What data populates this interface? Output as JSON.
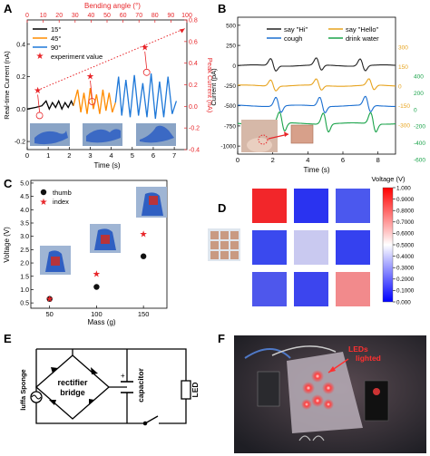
{
  "panel_labels": {
    "a": "A",
    "b": "B",
    "c": "C",
    "d": "D",
    "e": "E",
    "f": "F"
  },
  "chart_data": [
    {
      "panel": "A",
      "type": "line",
      "xlabel": "Time (s)",
      "x_ticks": [
        0,
        1,
        2,
        3,
        4,
        5,
        6,
        7
      ],
      "xlim": [
        0,
        7.6
      ],
      "ylabel_left": "Real-time Current (nA)",
      "ylim_left": [
        -0.25,
        0.55
      ],
      "y_ticks_left": [
        "-0.2",
        "0.0",
        "0.2",
        "0.4"
      ],
      "ylabel_right": "Peak Current (nA)",
      "ylim_right": [
        -0.4,
        0.8
      ],
      "y_ticks_right": [
        "-0.4",
        "-0.2",
        "0.0",
        "0.2",
        "0.4",
        "0.6",
        "0.8"
      ],
      "top_axis_label": "Bending angle (°)",
      "top_ticks": [
        "0",
        "10",
        "20",
        "30",
        "40",
        "50",
        "60",
        "70",
        "80",
        "90",
        "100"
      ],
      "series": [
        {
          "name": "15°",
          "color": "#000000",
          "x": [
            0,
            0.4,
            0.7,
            0.9,
            1.05,
            1.2,
            1.35,
            1.5,
            1.65,
            1.8,
            1.95,
            2.1,
            2.2
          ],
          "y": [
            0.0,
            0.01,
            0.02,
            0.05,
            0.0,
            0.04,
            0.01,
            0.05,
            0.0,
            0.04,
            0.01,
            0.05,
            0.02
          ]
        },
        {
          "name": "45°",
          "color": "#ff8c00",
          "x": [
            2.2,
            2.4,
            2.55,
            2.7,
            2.85,
            3.0,
            3.15,
            3.3,
            3.45,
            3.6,
            3.75,
            3.9,
            4.05,
            4.2
          ],
          "y": [
            0.02,
            0.12,
            -0.02,
            0.1,
            -0.03,
            0.13,
            0.0,
            0.09,
            -0.03,
            0.12,
            -0.01,
            0.1,
            -0.02,
            0.04
          ]
        },
        {
          "name": "90°",
          "color": "#1e78d8",
          "x": [
            4.2,
            4.35,
            4.5,
            4.7,
            4.9,
            5.1,
            5.3,
            5.5,
            5.7,
            5.9,
            6.1,
            6.3,
            6.5,
            6.7,
            6.9,
            7.1
          ],
          "y": [
            0.04,
            0.2,
            -0.04,
            0.18,
            -0.05,
            0.21,
            -0.04,
            0.16,
            -0.05,
            0.22,
            -0.06,
            0.17,
            -0.05,
            0.2,
            -0.03,
            0.05
          ]
        }
      ],
      "peak_series": {
        "name": "experiment value",
        "color": "#e8262a",
        "x": [
          0.5,
          3.0,
          5.6
        ],
        "y": [
          0.15,
          0.28,
          0.55
        ]
      },
      "trend_end": {
        "x": 7.5,
        "y": 0.72
      },
      "annotations": [
        "15°",
        "45°",
        "90°",
        "experiment value"
      ]
    },
    {
      "panel": "B",
      "type": "line",
      "xlabel": "Time (s)",
      "x_ticks": [
        0,
        2,
        4,
        6,
        8
      ],
      "xlim": [
        0,
        9
      ],
      "ylabel_left": "Current (pA)",
      "y_ticks_left": [
        "-1000",
        "-750",
        "-500",
        "-250",
        "0",
        "250",
        "500"
      ],
      "ylim_left": [
        -1100,
        600
      ],
      "y_ticks_right_orange": [
        "-300",
        "-150",
        "0",
        "150",
        "300"
      ],
      "y_ticks_right_green": [
        "-600",
        "-400",
        "-200",
        "0",
        "200",
        "400"
      ],
      "legend": [
        {
          "name": "say \"Hi\"",
          "color": "#222222"
        },
        {
          "name": "say \"Hello\"",
          "color": "#e7a31e"
        },
        {
          "name": "cough",
          "color": "#1b6fd1"
        },
        {
          "name": "drink water",
          "color": "#1aa34a"
        }
      ],
      "series": [
        {
          "name": "say \"Hi\"",
          "color": "#222222",
          "offset": 0,
          "amp": 95,
          "peaks": [
            1.9,
            4.5,
            7.0
          ]
        },
        {
          "name": "say \"Hello\"",
          "color": "#e7a31e",
          "offset": -250,
          "amp": 85,
          "peaks": [
            1.9,
            4.5,
            7.5
          ]
        },
        {
          "name": "cough",
          "color": "#1b6fd1",
          "offset": -500,
          "amp": 120,
          "peaks": [
            2.2,
            4.7,
            7.3
          ]
        },
        {
          "name": "drink water",
          "color": "#1aa34a",
          "offset": -720,
          "amp": 150,
          "peaks": [
            2.4,
            4.9,
            7.6
          ]
        }
      ]
    },
    {
      "panel": "C",
      "type": "scatter",
      "xlabel": "Mass (g)",
      "ylabel": "Voltage (V)",
      "x_ticks": [
        50,
        100,
        150
      ],
      "xlim": [
        30,
        175
      ],
      "y_ticks": [
        "0.5",
        "1.0",
        "1.5",
        "2.0",
        "2.5",
        "3.0",
        "3.5",
        "4.0",
        "4.5",
        "5.0"
      ],
      "ylim": [
        0.3,
        5.1
      ],
      "legend": [
        {
          "name": "thumb",
          "color": "#111111"
        },
        {
          "name": "index",
          "color": "#e8262a"
        }
      ],
      "series": [
        {
          "name": "thumb",
          "color": "#111111",
          "x": [
            50,
            100,
            150
          ],
          "y": [
            0.65,
            1.1,
            2.25
          ]
        },
        {
          "name": "index",
          "color": "#e8262a",
          "x": [
            50,
            100,
            150
          ],
          "y": [
            0.65,
            1.6,
            3.1
          ]
        }
      ]
    },
    {
      "panel": "D",
      "type": "heatmap",
      "colorbar_label": "Voltage (V)",
      "colorbar_ticks": [
        "0.000",
        "0.1000",
        "0.2000",
        "0.3000",
        "0.4000",
        "0.5000",
        "0.6000",
        "0.7000",
        "0.8000",
        "0.9000",
        "1.000"
      ],
      "values": [
        [
          0.95,
          0.12,
          0.25
        ],
        [
          0.15,
          0.42,
          0.18
        ],
        [
          0.2,
          0.14,
          0.7
        ]
      ],
      "colors": [
        [
          "#f2262a",
          "#2a33f0",
          "#4b58ee"
        ],
        [
          "#3a49ee",
          "#c9c9f0",
          "#3541ef"
        ],
        [
          "#4e57ec",
          "#3c45ee",
          "#f28a8c"
        ]
      ]
    }
  ],
  "diagram_e": {
    "rectifier_label": "rectifier",
    "bridge_label": "bridge",
    "capacitor_label": "capacitor",
    "led_label": "LED",
    "source_label": "luffa Sponge",
    "plus_sign": "+"
  },
  "photo_f": {
    "annotation_line1": "LEDs",
    "annotation_line2": "lighted"
  }
}
